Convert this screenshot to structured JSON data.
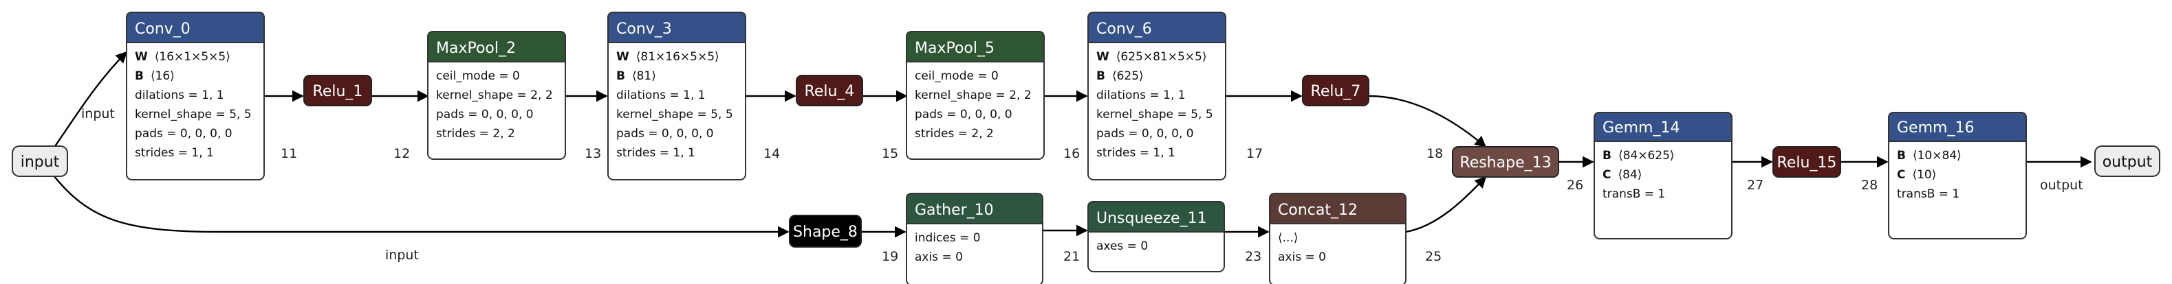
{
  "colors": {
    "conv": "#345289",
    "pool": "#2e5632",
    "relu": "#4f1a17",
    "gemm": "#345289",
    "shape": "#000000",
    "gather": "#2d5641",
    "unsqueeze": "#2d5641",
    "concat": "#5a3b35",
    "reshape": "#6d4a44",
    "io_fill": "#ededed"
  },
  "io": {
    "input": "input",
    "output": "output"
  },
  "nodes": {
    "conv_0": {
      "title": "Conv_0",
      "attrs": [
        {
          "key": "W",
          "val": "⟨16×1×5×5⟩"
        },
        {
          "key": "B",
          "val": "⟨16⟩"
        },
        {
          "key": "",
          "val": "dilations = 1, 1"
        },
        {
          "key": "",
          "val": "kernel_shape = 5, 5"
        },
        {
          "key": "",
          "val": "pads = 0, 0, 0, 0"
        },
        {
          "key": "",
          "val": "strides = 1, 1"
        }
      ]
    },
    "relu_1": {
      "title": "Relu_1"
    },
    "maxpool_2": {
      "title": "MaxPool_2",
      "attrs": [
        {
          "key": "",
          "val": "ceil_mode = 0"
        },
        {
          "key": "",
          "val": "kernel_shape = 2, 2"
        },
        {
          "key": "",
          "val": "pads = 0, 0, 0, 0"
        },
        {
          "key": "",
          "val": "strides = 2, 2"
        }
      ]
    },
    "conv_3": {
      "title": "Conv_3",
      "attrs": [
        {
          "key": "W",
          "val": "⟨81×16×5×5⟩"
        },
        {
          "key": "B",
          "val": "⟨81⟩"
        },
        {
          "key": "",
          "val": "dilations = 1, 1"
        },
        {
          "key": "",
          "val": "kernel_shape = 5, 5"
        },
        {
          "key": "",
          "val": "pads = 0, 0, 0, 0"
        },
        {
          "key": "",
          "val": "strides = 1, 1"
        }
      ]
    },
    "relu_4": {
      "title": "Relu_4"
    },
    "maxpool_5": {
      "title": "MaxPool_5",
      "attrs": [
        {
          "key": "",
          "val": "ceil_mode = 0"
        },
        {
          "key": "",
          "val": "kernel_shape = 2, 2"
        },
        {
          "key": "",
          "val": "pads = 0, 0, 0, 0"
        },
        {
          "key": "",
          "val": "strides = 2, 2"
        }
      ]
    },
    "conv_6": {
      "title": "Conv_6",
      "attrs": [
        {
          "key": "W",
          "val": "⟨625×81×5×5⟩"
        },
        {
          "key": "B",
          "val": "⟨625⟩"
        },
        {
          "key": "",
          "val": "dilations = 1, 1"
        },
        {
          "key": "",
          "val": "kernel_shape = 5, 5"
        },
        {
          "key": "",
          "val": "pads = 0, 0, 0, 0"
        },
        {
          "key": "",
          "val": "strides = 1, 1"
        }
      ]
    },
    "relu_7": {
      "title": "Relu_7"
    },
    "shape_8": {
      "title": "Shape_8"
    },
    "gather_10": {
      "title": "Gather_10",
      "attrs": [
        {
          "key": "",
          "val": "indices = 0"
        },
        {
          "key": "",
          "val": "axis = 0"
        }
      ]
    },
    "unsqueeze_11": {
      "title": "Unsqueeze_11",
      "attrs": [
        {
          "key": "",
          "val": "axes = 0"
        }
      ]
    },
    "concat_12": {
      "title": "Concat_12",
      "attrs": [
        {
          "key": "",
          "val": "⟨...⟩"
        },
        {
          "key": "",
          "val": "axis = 0"
        }
      ]
    },
    "reshape_13": {
      "title": "Reshape_13"
    },
    "gemm_14": {
      "title": "Gemm_14",
      "attrs": [
        {
          "key": "B",
          "val": "⟨84×625⟩"
        },
        {
          "key": "C",
          "val": "⟨84⟩"
        },
        {
          "key": "",
          "val": "transB = 1"
        }
      ]
    },
    "relu_15": {
      "title": "Relu_15"
    },
    "gemm_16": {
      "title": "Gemm_16",
      "attrs": [
        {
          "key": "B",
          "val": "⟨10×84⟩"
        },
        {
          "key": "C",
          "val": "⟨10⟩"
        },
        {
          "key": "",
          "val": "transB = 1"
        }
      ]
    }
  },
  "edges": {
    "input_to_conv0": "input",
    "conv0_to_relu1": "11",
    "relu1_to_pool2": "12",
    "pool2_to_conv3": "13",
    "conv3_to_relu4": "14",
    "relu4_to_pool5": "15",
    "pool5_to_conv6": "16",
    "conv6_to_relu7": "17",
    "relu7_to_reshape13": "18",
    "input_to_shape8": "input",
    "shape8_to_gather10": "19",
    "gather10_to_unsqueeze11": "21",
    "unsqueeze11_to_concat12": "23",
    "concat12_to_reshape13": "25",
    "reshape13_to_gemm14": "26",
    "gemm14_to_relu15": "27",
    "relu15_to_gemm16": "28",
    "gemm16_to_output": "output"
  }
}
